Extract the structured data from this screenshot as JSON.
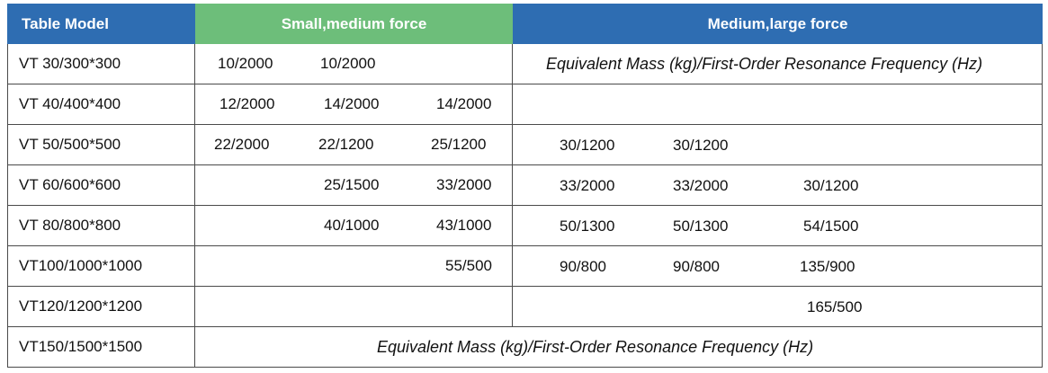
{
  "headers": {
    "model": "Table Model",
    "small": "Small,medium force",
    "large": "Medium,large force"
  },
  "note": "Equivalent Mass (kg)/First-Order Resonance Frequency (Hz)",
  "rows": [
    {
      "model": "VT 30/300*300",
      "small": [
        "10/2000",
        "10/2000",
        ""
      ],
      "large": [
        "",
        "",
        ""
      ]
    },
    {
      "model": "VT 40/400*400",
      "small": [
        "12/2000",
        "14/2000",
        "14/2000"
      ],
      "large": [
        "",
        "",
        ""
      ]
    },
    {
      "model": "VT 50/500*500",
      "small": [
        "22/2000",
        "22/1200",
        "25/1200"
      ],
      "large": [
        "30/1200",
        "30/1200",
        ""
      ]
    },
    {
      "model": "VT 60/600*600",
      "small": [
        "",
        "25/1500",
        "33/2000"
      ],
      "large": [
        "33/2000",
        "33/2000",
        "30/1200"
      ]
    },
    {
      "model": "VT 80/800*800",
      "small": [
        "",
        "40/1000",
        "43/1000"
      ],
      "large": [
        "50/1300",
        "50/1300",
        "54/1500"
      ]
    },
    {
      "model": "VT100/1000*1000",
      "small": [
        "",
        "",
        "55/500"
      ],
      "large": [
        "90/800",
        "90/800",
        "135/900"
      ]
    },
    {
      "model": "VT120/1200*1200",
      "small": [
        "",
        "",
        ""
      ],
      "large": [
        "",
        "",
        "165/500"
      ]
    },
    {
      "model": "VT150/1500*1500",
      "small": [
        "",
        "",
        ""
      ],
      "large": [
        "",
        "",
        ""
      ]
    }
  ]
}
